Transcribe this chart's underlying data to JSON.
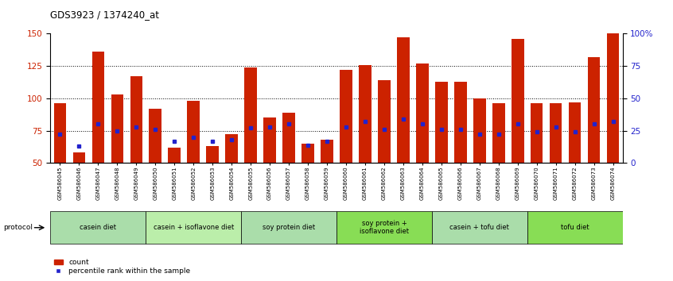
{
  "title": "GDS3923 / 1374240_at",
  "samples": [
    "GSM586045",
    "GSM586046",
    "GSM586047",
    "GSM586048",
    "GSM586049",
    "GSM586050",
    "GSM586051",
    "GSM586052",
    "GSM586053",
    "GSM586054",
    "GSM586055",
    "GSM586056",
    "GSM586057",
    "GSM586058",
    "GSM586059",
    "GSM586060",
    "GSM586061",
    "GSM586062",
    "GSM586063",
    "GSM586064",
    "GSM586065",
    "GSM586066",
    "GSM586067",
    "GSM586068",
    "GSM586069",
    "GSM586070",
    "GSM586071",
    "GSM586072",
    "GSM586073",
    "GSM586074"
  ],
  "counts": [
    96,
    58,
    136,
    103,
    117,
    92,
    62,
    98,
    63,
    72,
    124,
    85,
    89,
    65,
    68,
    122,
    126,
    114,
    147,
    127,
    113,
    113,
    100,
    96,
    146,
    96,
    96,
    97,
    132,
    150
  ],
  "percentile_ranks": [
    22,
    13,
    30,
    25,
    28,
    26,
    17,
    20,
    17,
    18,
    27,
    28,
    30,
    14,
    17,
    28,
    32,
    26,
    34,
    30,
    26,
    26,
    22,
    22,
    30,
    24,
    28,
    24,
    30,
    32
  ],
  "groups": [
    {
      "label": "casein diet",
      "start": 0,
      "end": 4,
      "color": "#aaddaa"
    },
    {
      "label": "casein + isoflavone diet",
      "start": 5,
      "end": 9,
      "color": "#bbeeaa"
    },
    {
      "label": "soy protein diet",
      "start": 10,
      "end": 14,
      "color": "#aaddaa"
    },
    {
      "label": "soy protein +\nisoflavone diet",
      "start": 15,
      "end": 19,
      "color": "#88dd55"
    },
    {
      "label": "casein + tofu diet",
      "start": 20,
      "end": 24,
      "color": "#aaddaa"
    },
    {
      "label": "tofu diet",
      "start": 25,
      "end": 29,
      "color": "#88dd55"
    }
  ],
  "bar_color": "#CC2200",
  "marker_color": "#2222CC",
  "ylim_left": [
    50,
    150
  ],
  "ylim_right": [
    0,
    100
  ],
  "yticks_left": [
    50,
    75,
    100,
    125,
    150
  ],
  "yticks_right": [
    0,
    25,
    50,
    75,
    100
  ],
  "ytick_labels_right": [
    "0",
    "25",
    "50",
    "75",
    "100%"
  ],
  "grid_values": [
    75,
    100,
    125
  ],
  "bar_width": 0.65
}
